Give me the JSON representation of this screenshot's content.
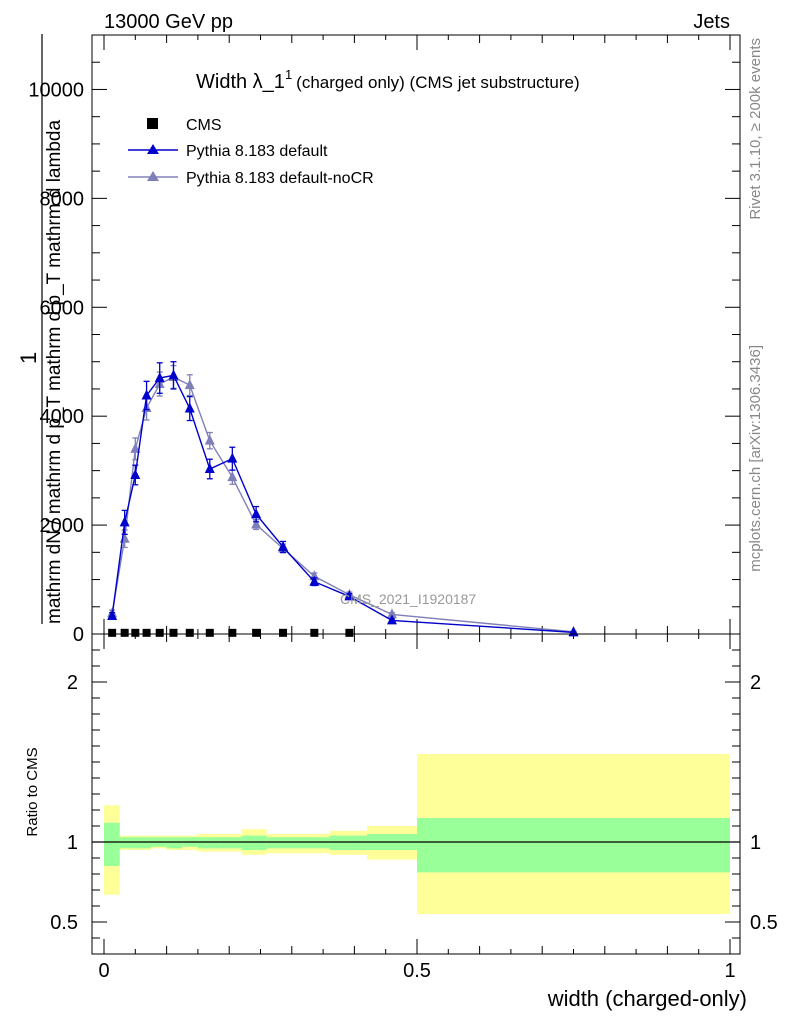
{
  "header": {
    "left": "13000 GeV pp",
    "right": "Jets"
  },
  "side_labels": {
    "rivet": "Rivet 3.1.10, ≥ 200k events",
    "mcplots": "mcplots.cern.ch [arXiv:1306.3436]"
  },
  "chart_data": [
    {
      "type": "line",
      "title": "Width λ_1¹ (charged only) (CMS jet substructure)",
      "title_main": "Width λ_1",
      "title_sup": "1",
      "title_sub": "(charged only) (CMS jet substructure)",
      "watermark": "CMS_2021_I1920187",
      "ylabel_numerator": "1",
      "ylabel_denominator": "mathrm dN / mathrm d p_T mathrm d p_T mathrm d lambda",
      "ylabel_parts": [
        "mathrm d²N",
        "mathrm d p",
        "T",
        "mathrm d lambda",
        "mathrm dN / mathrm d p",
        "T"
      ],
      "ylim": [
        0,
        11000
      ],
      "xlim": [
        0,
        1
      ],
      "yticks": [
        0,
        2000,
        4000,
        6000,
        8000,
        10000
      ],
      "ytick_labels": [
        "0",
        "2000",
        "4000",
        "6000",
        "8000",
        "10000"
      ],
      "legend_position": "top-left",
      "series": [
        {
          "name": "CMS",
          "color": "#000000",
          "marker": "square",
          "x": [
            0.013,
            0.033,
            0.05,
            0.068,
            0.089,
            0.111,
            0.137,
            0.169,
            0.205,
            0.243,
            0.286,
            0.336,
            0.392
          ],
          "y": [
            3,
            3,
            3,
            3,
            3,
            3,
            3,
            3,
            3,
            3,
            3,
            3,
            3
          ]
        },
        {
          "name": "Pythia 8.183 default",
          "color": "#0000cc",
          "marker": "triangle",
          "x": [
            0.013,
            0.033,
            0.05,
            0.068,
            0.089,
            0.111,
            0.137,
            0.169,
            0.205,
            0.243,
            0.286,
            0.336,
            0.392,
            0.46,
            0.75
          ],
          "y": [
            330,
            2050,
            2920,
            4380,
            4700,
            4750,
            4140,
            3030,
            3220,
            2200,
            1600,
            960,
            690,
            250,
            30
          ],
          "err": [
            60,
            220,
            180,
            260,
            280,
            250,
            220,
            180,
            210,
            140,
            100,
            70,
            50,
            25,
            8
          ]
        },
        {
          "name": "Pythia 8.183 default-noCR",
          "color": "#8080b8",
          "marker": "triangle",
          "x": [
            0.013,
            0.033,
            0.05,
            0.068,
            0.089,
            0.111,
            0.137,
            0.169,
            0.205,
            0.243,
            0.286,
            0.336,
            0.392,
            0.46,
            0.75
          ],
          "y": [
            380,
            1750,
            3400,
            4150,
            4590,
            4720,
            4570,
            3550,
            2880,
            2010,
            1570,
            1060,
            720,
            360,
            40
          ],
          "err": [
            60,
            160,
            200,
            220,
            220,
            210,
            190,
            150,
            130,
            90,
            80,
            60,
            50,
            30,
            8
          ]
        }
      ]
    },
    {
      "type": "area",
      "ylabel": "Ratio to CMS",
      "xlabel": "width (charged-only)",
      "xlim": [
        0,
        1
      ],
      "ylim": [
        0.3,
        2.3
      ],
      "xticks": [
        0,
        0.5,
        1
      ],
      "xtick_labels": [
        "0",
        "0.5",
        "1"
      ],
      "yticks": [
        0.5,
        1,
        2
      ],
      "ytick_labels": [
        "0.5",
        "1",
        "2"
      ],
      "bands": {
        "x_edges": [
          0,
          0.025,
          0.04,
          0.06,
          0.075,
          0.1,
          0.125,
          0.15,
          0.185,
          0.22,
          0.26,
          0.31,
          0.36,
          0.42,
          0.5,
          1.0
        ],
        "yellow": [
          [
            0.67,
            1.23
          ],
          [
            0.95,
            1.04
          ],
          [
            0.95,
            1.04
          ],
          [
            0.95,
            1.04
          ],
          [
            0.96,
            1.04
          ],
          [
            0.95,
            1.04
          ],
          [
            0.95,
            1.04
          ],
          [
            0.94,
            1.05
          ],
          [
            0.94,
            1.05
          ],
          [
            0.92,
            1.08
          ],
          [
            0.93,
            1.05
          ],
          [
            0.93,
            1.05
          ],
          [
            0.92,
            1.07
          ],
          [
            0.89,
            1.1
          ],
          [
            0.55,
            1.55
          ]
        ],
        "green": [
          [
            0.85,
            1.12
          ],
          [
            0.96,
            1.03
          ],
          [
            0.96,
            1.03
          ],
          [
            0.96,
            1.03
          ],
          [
            0.97,
            1.03
          ],
          [
            0.96,
            1.03
          ],
          [
            0.97,
            1.03
          ],
          [
            0.96,
            1.03
          ],
          [
            0.96,
            1.03
          ],
          [
            0.95,
            1.04
          ],
          [
            0.96,
            1.03
          ],
          [
            0.96,
            1.03
          ],
          [
            0.95,
            1.04
          ],
          [
            0.95,
            1.05
          ],
          [
            0.81,
            1.15
          ]
        ]
      },
      "band_colors": {
        "yellow": "#ffff99",
        "green": "#99ff99"
      },
      "reference_line": 1
    }
  ]
}
